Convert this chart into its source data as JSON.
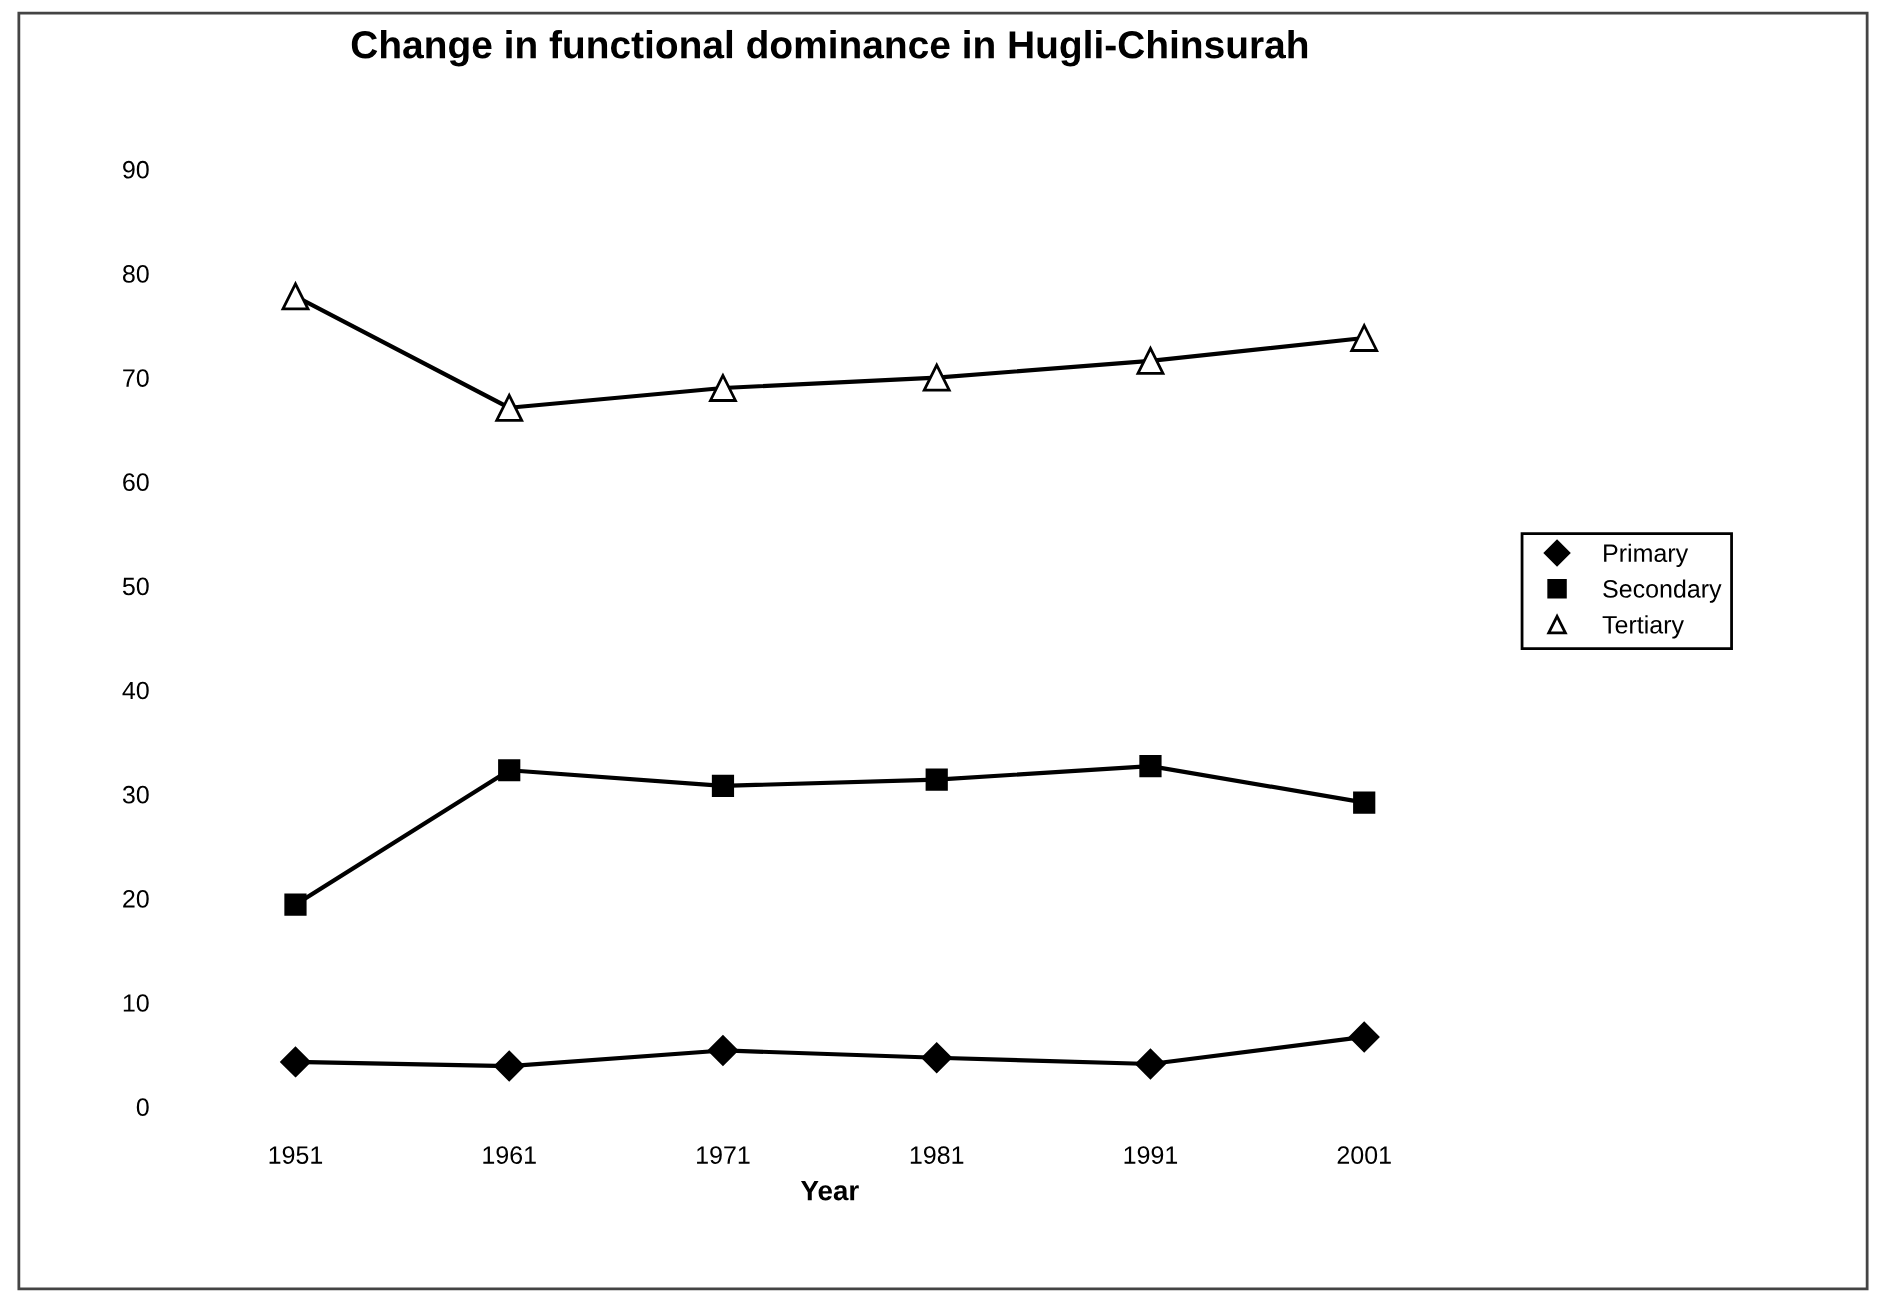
{
  "chart_data": {
    "type": "line",
    "title": "Change in functional dominance in Hugli-Chinsurah",
    "xlabel": "Year",
    "categories": [
      "1951",
      "1961",
      "1971",
      "1981",
      "1991",
      "2001"
    ],
    "series": [
      {
        "name": "Primary",
        "color": "#000000",
        "marker": "diamond",
        "values": [
          4.3,
          3.9,
          5.4,
          4.7,
          4.1,
          6.7
        ]
      },
      {
        "name": "Secondary",
        "color": "#000000",
        "marker": "square",
        "values": [
          19.4,
          32.3,
          30.8,
          31.4,
          32.7,
          29.2
        ]
      },
      {
        "name": "Tertiary",
        "color": "#000000",
        "marker": "triangle",
        "values": [
          77.8,
          67.1,
          69,
          70,
          71.6,
          73.8
        ]
      }
    ],
    "ylim": [
      0,
      90
    ],
    "yticks": [
      0,
      10,
      20,
      30,
      40,
      50,
      60,
      70,
      80,
      90
    ],
    "grid": false,
    "legend": "right",
    "line_style": "solid"
  }
}
